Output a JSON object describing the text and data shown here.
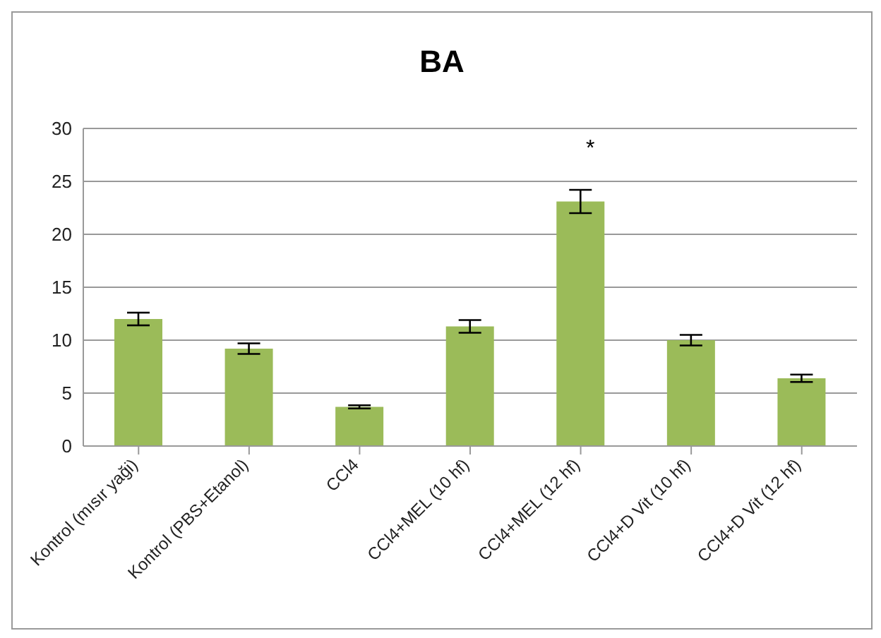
{
  "chart_data": {
    "type": "bar",
    "title": "BA",
    "categories": [
      "Kontrol (mısır yaği)",
      "Kontrol (PBS+Etanol)",
      "CCl4",
      "CCl4+MEL (10 hf)",
      "CCl4+MEL (12 hf)",
      "CCl4+D Vit (10 hf)",
      "CCl4+D Vit (12 hf)"
    ],
    "values": [
      12,
      9.2,
      3.7,
      11.3,
      23.1,
      10,
      6.4
    ],
    "errors": [
      0.6,
      0.5,
      0.15,
      0.6,
      1.1,
      0.5,
      0.35
    ],
    "color": "#9bbb59",
    "ylim": [
      0,
      30
    ],
    "yticks": [
      0,
      5,
      10,
      15,
      20,
      25,
      30
    ],
    "grid": "y",
    "legend": false,
    "annotations": [
      "*"
    ]
  }
}
